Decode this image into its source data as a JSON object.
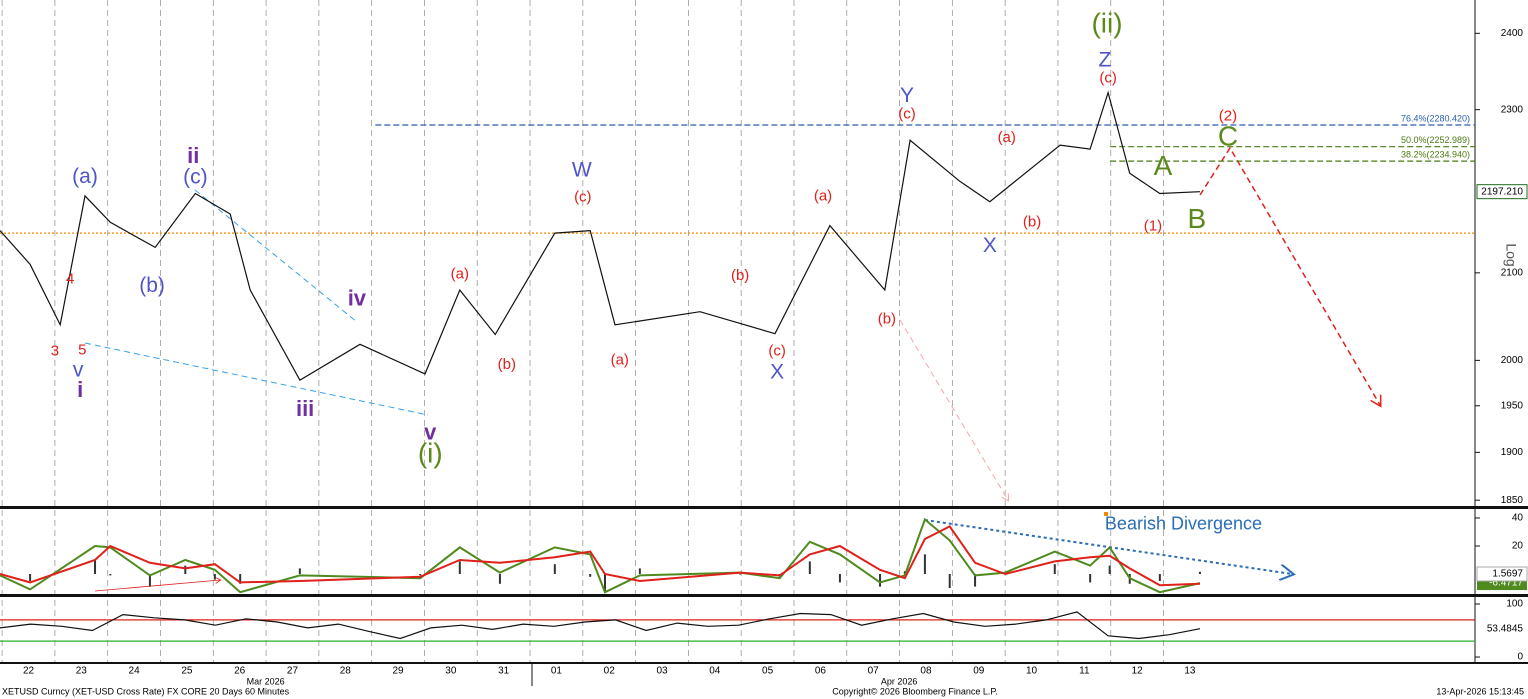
{
  "chart_data": [
    {
      "type": "line",
      "log": true,
      "x": [
        -0.04,
        0.53,
        1.1,
        1.57,
        2.05,
        2.9,
        3.66,
        4.32,
        4.7,
        5.64,
        6.78,
        8.01,
        8.67,
        9.34,
        10.47,
        11.14,
        11.61,
        13.22,
        14.64,
        15.68,
        16.72,
        17.2,
        18.14,
        18.71,
        20.04,
        20.61,
        20.95,
        21.36,
        21.93,
        22.69
      ],
      "series": [
        {
          "color": "#111111",
          "values": [
            2150,
            2110,
            2040,
            2192,
            2160,
            2130,
            2195,
            2170,
            2080,
            1978,
            2018,
            1985,
            2080,
            2029,
            2147,
            2150,
            2040,
            2055,
            2030,
            2156,
            2080,
            2261,
            2210,
            2185,
            2255,
            2250,
            2322,
            2220,
            2195,
            2197.21
          ],
          "value_labels": [
            null,
            null,
            null,
            null,
            null,
            null,
            null,
            null,
            null,
            null,
            null,
            null,
            null,
            null,
            null,
            null,
            null,
            null,
            null,
            null,
            null,
            null,
            null,
            null,
            null,
            null,
            null,
            null,
            null,
            "2197.210"
          ]
        }
      ],
      "xlim": [
        -0.04,
        27.9
      ],
      "xticks": [
        {
          "value": 0,
          "label": "22"
        },
        {
          "value": 1,
          "label": "23"
        },
        {
          "value": 2,
          "label": "24"
        },
        {
          "value": 3,
          "label": "25"
        },
        {
          "value": 4,
          "label": "26"
        },
        {
          "value": 5,
          "label": "27"
        },
        {
          "value": 6,
          "label": "28"
        },
        {
          "value": 7,
          "label": "29"
        },
        {
          "value": 8,
          "label": "30"
        },
        {
          "value": 9,
          "label": "31"
        },
        {
          "value": 10,
          "label": "01"
        },
        {
          "value": 11,
          "label": "02"
        },
        {
          "value": 12,
          "label": "03"
        },
        {
          "value": 13,
          "label": "04"
        },
        {
          "value": 14,
          "label": "05"
        },
        {
          "value": 15,
          "label": "06"
        },
        {
          "value": 16,
          "label": "07"
        },
        {
          "value": 17,
          "label": "08"
        },
        {
          "value": 18,
          "label": "09"
        },
        {
          "value": 19,
          "label": "10"
        },
        {
          "value": 20,
          "label": "11"
        },
        {
          "value": 21,
          "label": "12"
        },
        {
          "value": 22,
          "label": "13"
        }
      ],
      "month_labels": [
        {
          "x": 4.5,
          "label": "Mar 2026"
        },
        {
          "x": 16.5,
          "label": "Apr 2026"
        }
      ],
      "ylim": [
        1843,
        2445
      ],
      "yticks": [
        2400,
        2300,
        2100,
        2000,
        1950,
        1900,
        1850
      ],
      "axis_label": "Log",
      "levels": [
        {
          "value": 2280.42,
          "label": "76.4%(2280.420)",
          "color": "#2a5db0",
          "start": 7.07
        },
        {
          "value": 2252.989,
          "label": "50.0%(2252.989)",
          "color": "#4a7a10",
          "start": 20.99
        },
        {
          "value": 2234.94,
          "label": "38.2%(2234.940)",
          "color": "#4a7a10",
          "start": 20.99
        },
        {
          "value": 2147,
          "color": "#f08a00",
          "start": -0.04
        }
      ],
      "annotations": [
        {
          "text": "3",
          "x": 1.0,
          "y": 2010,
          "color": "#e0201b"
        },
        {
          "text": "4",
          "x": 1.29,
          "y": 2092,
          "color": "#e0201b"
        },
        {
          "text": "5",
          "x": 1.52,
          "y": 2011,
          "color": "#e0201b"
        },
        {
          "text": "v",
          "x": 1.44,
          "y": 1988,
          "color": "#4f55c8"
        },
        {
          "text": "i",
          "x": 1.48,
          "y": 1966,
          "color": "#7030a0"
        },
        {
          "text": "(a)",
          "x": 1.57,
          "y": 2215,
          "color": "#4f55c8"
        },
        {
          "text": "(b)",
          "x": 2.84,
          "y": 2084,
          "color": "#4f55c8"
        },
        {
          "text": "(c)",
          "x": 3.66,
          "y": 2214,
          "color": "#4f55c8"
        },
        {
          "text": "ii",
          "x": 3.62,
          "y": 2240,
          "color": "#7030a0"
        },
        {
          "text": "iii",
          "x": 5.74,
          "y": 1945,
          "color": "#7030a0"
        },
        {
          "text": "iv",
          "x": 6.72,
          "y": 2069,
          "color": "#7030a0"
        },
        {
          "text": "v",
          "x": 8.11,
          "y": 1920,
          "color": "#7030a0"
        },
        {
          "text": "(i)",
          "x": 8.11,
          "y": 1897,
          "color": "#5a8a1a"
        },
        {
          "text": "(a)",
          "x": 8.67,
          "y": 2098,
          "color": "#e0201b"
        },
        {
          "text": "(b)",
          "x": 9.56,
          "y": 1995,
          "color": "#e0201b"
        },
        {
          "text": "(c)",
          "x": 11.0,
          "y": 2190,
          "color": "#e0201b"
        },
        {
          "text": "W",
          "x": 10.98,
          "y": 2223,
          "color": "#4f55c8"
        },
        {
          "text": "(a)",
          "x": 11.7,
          "y": 2000,
          "color": "#e0201b"
        },
        {
          "text": "(b)",
          "x": 13.98,
          "y": 2096,
          "color": "#e0201b"
        },
        {
          "text": "(c)",
          "x": 14.68,
          "y": 2010,
          "color": "#e0201b"
        },
        {
          "text": "X",
          "x": 14.68,
          "y": 1986,
          "color": "#4f55c8"
        },
        {
          "text": "(a)",
          "x": 15.55,
          "y": 2191,
          "color": "#e0201b"
        },
        {
          "text": "(b)",
          "x": 16.76,
          "y": 2046,
          "color": "#e0201b"
        },
        {
          "text": "(c)",
          "x": 17.14,
          "y": 2294,
          "color": "#e0201b"
        },
        {
          "text": "Y",
          "x": 17.14,
          "y": 2317,
          "color": "#4f55c8"
        },
        {
          "text": "(a)",
          "x": 19.03,
          "y": 2264,
          "color": "#e0201b"
        },
        {
          "text": "(b)",
          "x": 19.51,
          "y": 2160,
          "color": "#e0201b"
        },
        {
          "text": "X",
          "x": 18.71,
          "y": 2131,
          "color": "#4f55c8"
        },
        {
          "text": "(c)",
          "x": 20.95,
          "y": 2340,
          "color": "#e0201b"
        },
        {
          "text": "Z",
          "x": 20.89,
          "y": 2363,
          "color": "#4f55c8"
        },
        {
          "text": "(ii)",
          "x": 20.93,
          "y": 2411,
          "color": "#5a8a1a"
        },
        {
          "text": "(1)",
          "x": 21.8,
          "y": 2155,
          "color": "#e0201b"
        },
        {
          "text": "(2)",
          "x": 23.22,
          "y": 2291,
          "color": "#e0201b"
        },
        {
          "text": "A",
          "x": 21.99,
          "y": 2227,
          "color": "#5a8a1a"
        },
        {
          "text": "C",
          "x": 23.22,
          "y": 2264,
          "color": "#5a8a1a"
        },
        {
          "text": "B",
          "x": 22.63,
          "y": 2162,
          "color": "#5a8a1a"
        }
      ]
    },
    {
      "type": "line",
      "x": [
        -0.04,
        0.53,
        1.76,
        2.05,
        2.8,
        3.47,
        4.03,
        4.51,
        5.64,
        7.92,
        8.67,
        9.43,
        10.47,
        11.14,
        11.42,
        12.08,
        13.98,
        14.73,
        15.3,
        15.87,
        16.63,
        17.1,
        17.48,
        17.95,
        18.43,
        19.0,
        19.94,
        20.61,
        20.98,
        21.36,
        21.93,
        22.69
      ],
      "series": [
        {
          "color": "#4f8a1e",
          "values": [
            -1,
            -11,
            20,
            19,
            -1,
            10,
            3,
            -13,
            -1,
            -3,
            19,
            1,
            19,
            14,
            -13,
            -1,
            1,
            -3,
            23,
            14,
            -6,
            -1,
            39,
            24,
            -1,
            1,
            16,
            6,
            19,
            -3,
            -13,
            -6.4717
          ]
        },
        {
          "color": "#e0201b",
          "values": [
            0,
            -6,
            10,
            20,
            8,
            4,
            7,
            -6,
            -5,
            -2,
            10,
            8,
            12,
            16,
            0,
            -5,
            1,
            -1,
            14,
            20,
            3,
            -3,
            25,
            34,
            8,
            0,
            9,
            12,
            13,
            4,
            -8,
            -7
          ]
        }
      ],
      "histogram": {
        "color": "#333333",
        "values": [
          -1,
          -5,
          10,
          -1,
          -9,
          6,
          -4,
          -7,
          4,
          -1,
          9,
          -7,
          7,
          -2,
          -13,
          4,
          0,
          -2,
          9,
          -6,
          -9,
          2,
          14,
          -10,
          -9,
          1,
          7,
          -6,
          6,
          -7,
          -5,
          1.5697
        ]
      },
      "ylim": [
        -15,
        45.7
      ],
      "yticks": [
        40,
        20
      ],
      "annotations": [
        {
          "text": "Bearish Divergence",
          "x": 20.89,
          "y": 35,
          "color": "#2a6db5"
        }
      ]
    },
    {
      "type": "line",
      "x": [
        -0.04,
        0.54,
        1.13,
        1.71,
        2.29,
        2.88,
        3.46,
        4.04,
        4.62,
        5.21,
        5.79,
        6.37,
        6.96,
        7.54,
        8.12,
        8.71,
        9.29,
        9.87,
        10.45,
        11.04,
        11.62,
        12.2,
        12.79,
        13.37,
        13.95,
        14.54,
        15.12,
        15.7,
        16.28,
        16.87,
        17.45,
        18.03,
        18.62,
        19.2,
        19.78,
        20.36,
        20.95,
        21.53,
        22.11,
        22.69
      ],
      "series": [
        {
          "color": "#111111",
          "values": [
            55,
            62,
            58,
            50,
            80,
            74,
            70,
            60,
            72,
            66,
            55,
            62,
            48,
            35,
            55,
            60,
            52,
            62,
            58,
            66,
            70,
            50,
            64,
            58,
            60,
            72,
            82,
            80,
            60,
            72,
            82,
            66,
            58,
            62,
            70,
            85,
            40,
            35,
            42,
            53.4845
          ]
        }
      ],
      "levels": [
        {
          "value": 70,
          "color": "#e0201b"
        },
        {
          "value": 30,
          "color": "#2bb02b"
        }
      ],
      "ylim": [
        -9.4,
        111.3
      ],
      "yticks": [
        100,
        0
      ]
    }
  ],
  "footer": {
    "left": "XETUSD Curncy (XET-USD Cross Rate) FX CORE 20 Days 60 Minutes",
    "center": "Copyright© 2026 Bloomberg Finance L.P.",
    "right": "13-Apr-2026 15:13:45"
  }
}
